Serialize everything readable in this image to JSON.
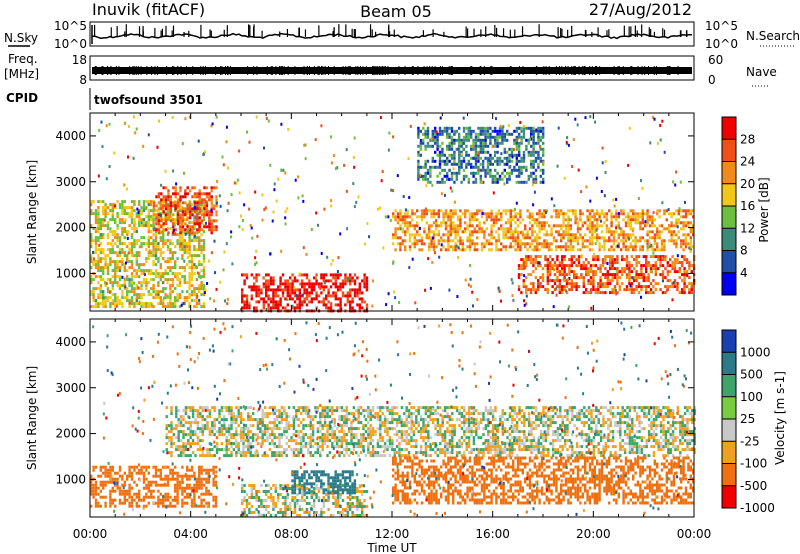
{
  "header": {
    "station": "Inuvik (fitACF)",
    "beam": "Beam 05",
    "date": "27/Aug/2012"
  },
  "nsky_panel": {
    "left_label": "N.Sky",
    "left_top": "10^5",
    "left_bottom": "10^0",
    "right_label": "N.Search",
    "right_top": "10^5",
    "right_bottom": "10^0"
  },
  "freq_panel": {
    "left_label_1": "Freq.",
    "left_label_2": "[MHz]",
    "left_top": "18",
    "left_bottom": "8",
    "right_label": "Nave",
    "right_top": "60",
    "right_bottom": "0"
  },
  "cpid_panel": {
    "label": "CPID",
    "value": "twofsound 3501"
  },
  "x_axis": {
    "label": "Time UT",
    "ticks": [
      "00:00",
      "04:00",
      "08:00",
      "12:00",
      "16:00",
      "20:00",
      "00:00"
    ]
  },
  "power_panel": {
    "ylabel": "Slant Range [km]",
    "yticks": [
      "1000",
      "2000",
      "3000",
      "4000"
    ],
    "colorbar_label": "Power [dB]",
    "colorbar_ticks": [
      "4",
      "8",
      "12",
      "16",
      "20",
      "24",
      "28"
    ],
    "colors": [
      "#0000ee",
      "#1f4fa8",
      "#3c8a78",
      "#6cbf3c",
      "#f2c818",
      "#f28a18",
      "#f05018",
      "#ee0000"
    ]
  },
  "velocity_panel": {
    "ylabel": "Slant Range [km]",
    "yticks": [
      "1000",
      "2000",
      "3000",
      "4000"
    ],
    "colorbar_label": "Velocity [m s-1]",
    "colorbar_ticks": [
      "1000",
      "500",
      "100",
      "25",
      "-25",
      "-100",
      "-500",
      "-1000"
    ],
    "colors": [
      "#1a3fb0",
      "#2a7a8a",
      "#3ea46a",
      "#78cc40",
      "#c8c8c8",
      "#f0a020",
      "#f07010",
      "#ee0000"
    ]
  },
  "chart_data": [
    {
      "type": "heatmap",
      "title": "Power",
      "xlabel": "Time UT",
      "ylabel": "Slant Range [km]",
      "xlim": [
        "00:00",
        "24:00"
      ],
      "ylim": [
        180,
        4500
      ],
      "colorbar": {
        "label": "Power [dB]",
        "range": [
          0,
          30
        ]
      },
      "features": [
        {
          "time_range": [
            "00:00",
            "04:30"
          ],
          "range_km": [
            300,
            2600
          ],
          "power_db": 16
        },
        {
          "time_range": [
            "02:30",
            "05:00"
          ],
          "range_km": [
            1900,
            2900
          ],
          "power_db": 24
        },
        {
          "time_range": [
            "06:00",
            "11:00"
          ],
          "range_km": [
            200,
            1000
          ],
          "power_db": 28
        },
        {
          "time_range": [
            "12:00",
            "24:00"
          ],
          "range_km": [
            1500,
            2400
          ],
          "power_db": 20
        },
        {
          "time_range": [
            "17:00",
            "24:00"
          ],
          "range_km": [
            600,
            1400
          ],
          "power_db": 24
        },
        {
          "time_range": [
            "13:00",
            "18:00"
          ],
          "range_km": [
            3000,
            4200
          ],
          "power_db": 8
        }
      ]
    },
    {
      "type": "heatmap",
      "title": "Velocity",
      "xlabel": "Time UT",
      "ylabel": "Slant Range [km]",
      "xlim": [
        "00:00",
        "24:00"
      ],
      "ylim": [
        180,
        4500
      ],
      "colorbar": {
        "label": "Velocity [m s-1]",
        "range": [
          -1000,
          1000
        ]
      },
      "features": [
        {
          "time_range": [
            "00:00",
            "05:00"
          ],
          "range_km": [
            400,
            1300
          ],
          "velocity_ms": -300
        },
        {
          "time_range": [
            "03:00",
            "24:00"
          ],
          "range_km": [
            1500,
            2600
          ],
          "velocity_ms": 0
        },
        {
          "time_range": [
            "06:00",
            "11:00"
          ],
          "range_km": [
            200,
            900
          ],
          "velocity_ms": 0
        },
        {
          "time_range": [
            "08:00",
            "10:30"
          ],
          "range_km": [
            700,
            1200
          ],
          "velocity_ms": 300
        },
        {
          "time_range": [
            "12:00",
            "24:00"
          ],
          "range_km": [
            500,
            1500
          ],
          "velocity_ms": -300
        }
      ]
    }
  ]
}
